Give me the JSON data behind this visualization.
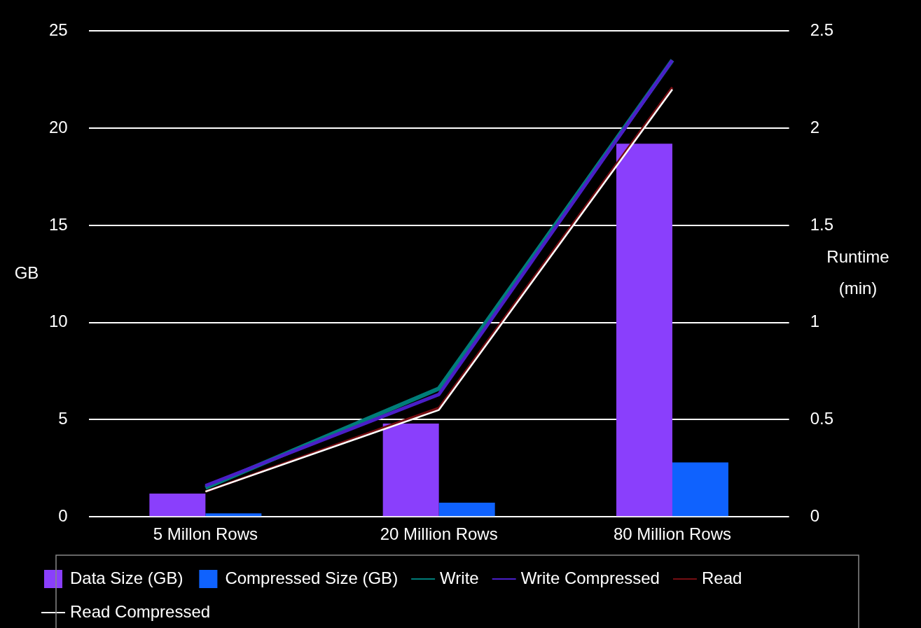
{
  "chart_data": {
    "type": "bar",
    "categories": [
      "5 Millon Rows",
      "20 Million Rows",
      "80 Million Rows"
    ],
    "series": [
      {
        "name": "Data Size (GB)",
        "color": "#8a3ffc",
        "values": [
          1.2,
          4.8,
          19.2
        ]
      },
      {
        "name": "Compressed Size (GB)",
        "color": "#0f62fe",
        "values": [
          0.18,
          0.73,
          2.8
        ]
      },
      {
        "name": "Write",
        "type": "line",
        "axis": "y2",
        "color": "#007d79",
        "values": [
          0.15,
          0.66,
          2.35
        ]
      },
      {
        "name": "Write Compressed",
        "type": "line",
        "axis": "y2",
        "color": "#4a1fc8",
        "values": [
          0.16,
          0.63,
          2.35
        ]
      },
      {
        "name": "Read",
        "type": "line",
        "axis": "y2",
        "color": "#750e13",
        "values": [
          0.13,
          0.56,
          2.21
        ]
      },
      {
        "name": "Read Compressed",
        "type": "line",
        "axis": "y2",
        "color": "#ffffff",
        "values": [
          0.13,
          0.55,
          2.2
        ]
      }
    ],
    "ylabel": "GB",
    "y2label": "Runtime (min)",
    "ylim": [
      0,
      25
    ],
    "yticks": [
      0,
      5,
      10,
      15,
      20,
      25
    ],
    "y2lim": [
      0,
      2.5
    ],
    "y2ticks": [
      0,
      0.5,
      1,
      1.5,
      2,
      2.5
    ],
    "grid": "y",
    "legend": "bottom",
    "marker": "none"
  }
}
